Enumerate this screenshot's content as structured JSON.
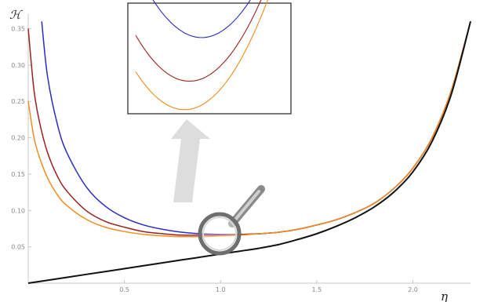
{
  "chart_data": {
    "type": "line",
    "xlabel": "η",
    "ylabel": "ℋ",
    "xlim": [
      0.0,
      2.3
    ],
    "ylim": [
      0.0,
      0.37
    ],
    "x_ticks": [
      "0.5",
      "1.0",
      "1.5",
      "2.0"
    ],
    "y_ticks": [
      "0.05",
      "0.10",
      "0.15",
      "0.20",
      "0.25",
      "0.30",
      "0.35"
    ],
    "grid": false,
    "legend": "none",
    "series": [
      {
        "color": "#2b2bc4",
        "x": [
          0.07,
          0.1,
          0.15,
          0.2,
          0.3,
          0.4,
          0.5,
          0.6,
          0.7,
          0.8,
          0.9,
          1.0,
          1.1,
          1.2,
          1.3,
          1.4,
          1.5,
          1.6,
          1.7,
          1.8,
          1.9,
          2.0,
          2.1,
          2.2,
          2.3
        ],
        "y": [
          0.36,
          0.285,
          0.22,
          0.18,
          0.133,
          0.106,
          0.09,
          0.08,
          0.074,
          0.07,
          0.068,
          0.067,
          0.067,
          0.068,
          0.07,
          0.074,
          0.08,
          0.087,
          0.097,
          0.11,
          0.13,
          0.158,
          0.2,
          0.265,
          0.36
        ]
      },
      {
        "color": "#9a2020",
        "x": [
          0.0,
          0.03,
          0.06,
          0.1,
          0.15,
          0.2,
          0.3,
          0.4,
          0.5,
          0.6,
          0.7,
          0.8,
          0.9,
          1.0,
          1.1,
          1.2,
          1.3,
          1.4,
          1.5,
          1.6,
          1.7,
          1.8,
          1.9,
          2.0,
          2.1,
          2.2,
          2.3
        ],
        "y": [
          0.35,
          0.265,
          0.22,
          0.18,
          0.148,
          0.127,
          0.1,
          0.085,
          0.077,
          0.071,
          0.068,
          0.066,
          0.066,
          0.066,
          0.067,
          0.068,
          0.07,
          0.074,
          0.08,
          0.087,
          0.097,
          0.11,
          0.13,
          0.158,
          0.2,
          0.265,
          0.36
        ]
      },
      {
        "color": "#f28c1e",
        "x": [
          0.0,
          0.03,
          0.06,
          0.1,
          0.15,
          0.2,
          0.3,
          0.4,
          0.5,
          0.6,
          0.7,
          0.8,
          0.9,
          1.0,
          1.1,
          1.2,
          1.3,
          1.4,
          1.5,
          1.6,
          1.7,
          1.8,
          1.9,
          2.0,
          2.1,
          2.2,
          2.3
        ],
        "y": [
          0.25,
          0.2,
          0.172,
          0.145,
          0.122,
          0.107,
          0.088,
          0.077,
          0.071,
          0.067,
          0.065,
          0.064,
          0.064,
          0.065,
          0.066,
          0.068,
          0.07,
          0.074,
          0.08,
          0.087,
          0.097,
          0.11,
          0.13,
          0.158,
          0.2,
          0.265,
          0.36
        ]
      },
      {
        "color": "#111111",
        "x": [
          0.0,
          0.2,
          0.4,
          0.6,
          0.8,
          1.0,
          1.1,
          1.2,
          1.3,
          1.4,
          1.5,
          1.6,
          1.7,
          1.8,
          1.9,
          2.0,
          2.1,
          2.2,
          2.3
        ],
        "y": [
          0.0,
          0.008,
          0.016,
          0.024,
          0.032,
          0.04,
          0.044,
          0.048,
          0.053,
          0.06,
          0.068,
          0.078,
          0.09,
          0.105,
          0.125,
          0.153,
          0.195,
          0.26,
          0.36
        ]
      }
    ]
  }
}
